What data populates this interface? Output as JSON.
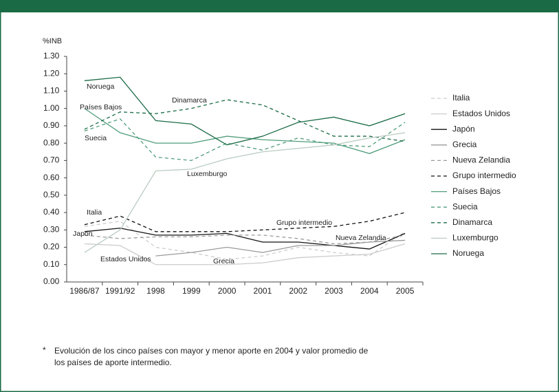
{
  "chart_data": {
    "type": "line",
    "ylabel": "%INB",
    "categories": [
      "1986/87",
      "1991/92",
      "1998",
      "1999",
      "2000",
      "2001",
      "2002",
      "2003",
      "2004",
      "2005"
    ],
    "ylim": [
      0,
      1.3
    ],
    "yticks": [
      {
        "value": 0,
        "label": "0.00"
      },
      {
        "value": 0.1,
        "label": "0.10"
      },
      {
        "value": 0.2,
        "label": "0.20"
      },
      {
        "value": 0.3,
        "label": "0.30"
      },
      {
        "value": 0.4,
        "label": "0.40"
      },
      {
        "value": 0.5,
        "label": "0.50"
      },
      {
        "value": 0.6,
        "label": "0.60"
      },
      {
        "value": 0.7,
        "label": "0.70"
      },
      {
        "value": 0.8,
        "label": "0.80"
      },
      {
        "value": 0.9,
        "label": "0.90"
      },
      {
        "value": 1.0,
        "label": "1.00"
      },
      {
        "value": 1.1,
        "label": "1.10"
      },
      {
        "value": 1.2,
        "label": "1.20"
      },
      {
        "value": 1.3,
        "label": "1.30"
      }
    ],
    "legend": "right",
    "series": [
      {
        "name": "Italia",
        "color": "#cccccc",
        "dash": true,
        "values": [
          0.32,
          0.35,
          0.2,
          0.17,
          0.13,
          0.15,
          0.2,
          0.17,
          0.15,
          0.29
        ]
      },
      {
        "name": "Estados Unidos",
        "color": "#cccccc",
        "dash": false,
        "values": [
          0.22,
          0.21,
          0.1,
          0.1,
          0.1,
          0.11,
          0.14,
          0.15,
          0.16,
          0.22
        ]
      },
      {
        "name": "Japón",
        "color": "#111111",
        "dash": false,
        "values": [
          0.29,
          0.31,
          0.27,
          0.27,
          0.28,
          0.23,
          0.23,
          0.21,
          0.19,
          0.28
        ]
      },
      {
        "name": "Grecia",
        "color": "#999999",
        "dash": false,
        "values": [
          null,
          null,
          0.15,
          0.17,
          0.2,
          0.17,
          0.21,
          0.21,
          0.23,
          0.24
        ]
      },
      {
        "name": "Nueva Zelandia",
        "color": "#999999",
        "dash": true,
        "values": [
          0.27,
          0.25,
          0.26,
          0.26,
          0.27,
          0.27,
          0.25,
          0.22,
          0.23,
          0.27
        ]
      },
      {
        "name": "Grupo intermedio",
        "color": "#111111",
        "dash": true,
        "values": [
          0.33,
          0.38,
          0.29,
          0.29,
          0.29,
          0.3,
          0.31,
          0.32,
          0.35,
          0.4
        ]
      },
      {
        "name": "Países Bajos",
        "color": "#4f9c7b",
        "dash": false,
        "values": [
          1.0,
          0.86,
          0.8,
          0.8,
          0.84,
          0.82,
          0.81,
          0.8,
          0.74,
          0.82
        ]
      },
      {
        "name": "Suecia",
        "color": "#4f9c7b",
        "dash": true,
        "values": [
          0.87,
          0.94,
          0.72,
          0.7,
          0.8,
          0.76,
          0.83,
          0.79,
          0.78,
          0.92
        ]
      },
      {
        "name": "Dinamarca",
        "color": "#1a6b45",
        "dash": true,
        "values": [
          0.88,
          0.98,
          0.97,
          1.0,
          1.05,
          1.02,
          0.93,
          0.84,
          0.84,
          0.81
        ]
      },
      {
        "name": "Luxemburgo",
        "color": "#b9cbc1",
        "dash": false,
        "values": [
          0.17,
          0.3,
          0.64,
          0.65,
          0.71,
          0.75,
          0.77,
          0.79,
          0.83,
          0.86
        ]
      },
      {
        "name": "Noruega",
        "color": "#1a6b45",
        "dash": false,
        "values": [
          1.16,
          1.18,
          0.93,
          0.91,
          0.79,
          0.84,
          0.92,
          0.95,
          0.9,
          0.97
        ]
      }
    ],
    "annotations": [
      "Noruega",
      "Países Bajos",
      "Suecia",
      "Dinamarca",
      "Luxemburgo",
      "Italia",
      "Japón",
      "Estados Unidos",
      "Grecia",
      "Grupo intermedio",
      "Nueva Zelandia"
    ],
    "note": {
      "marker": "*",
      "lines": [
        "Evolución de los cinco países con mayor y menor aporte en 2004 y valor promedio de",
        "los países de aporte intermedio."
      ]
    }
  }
}
